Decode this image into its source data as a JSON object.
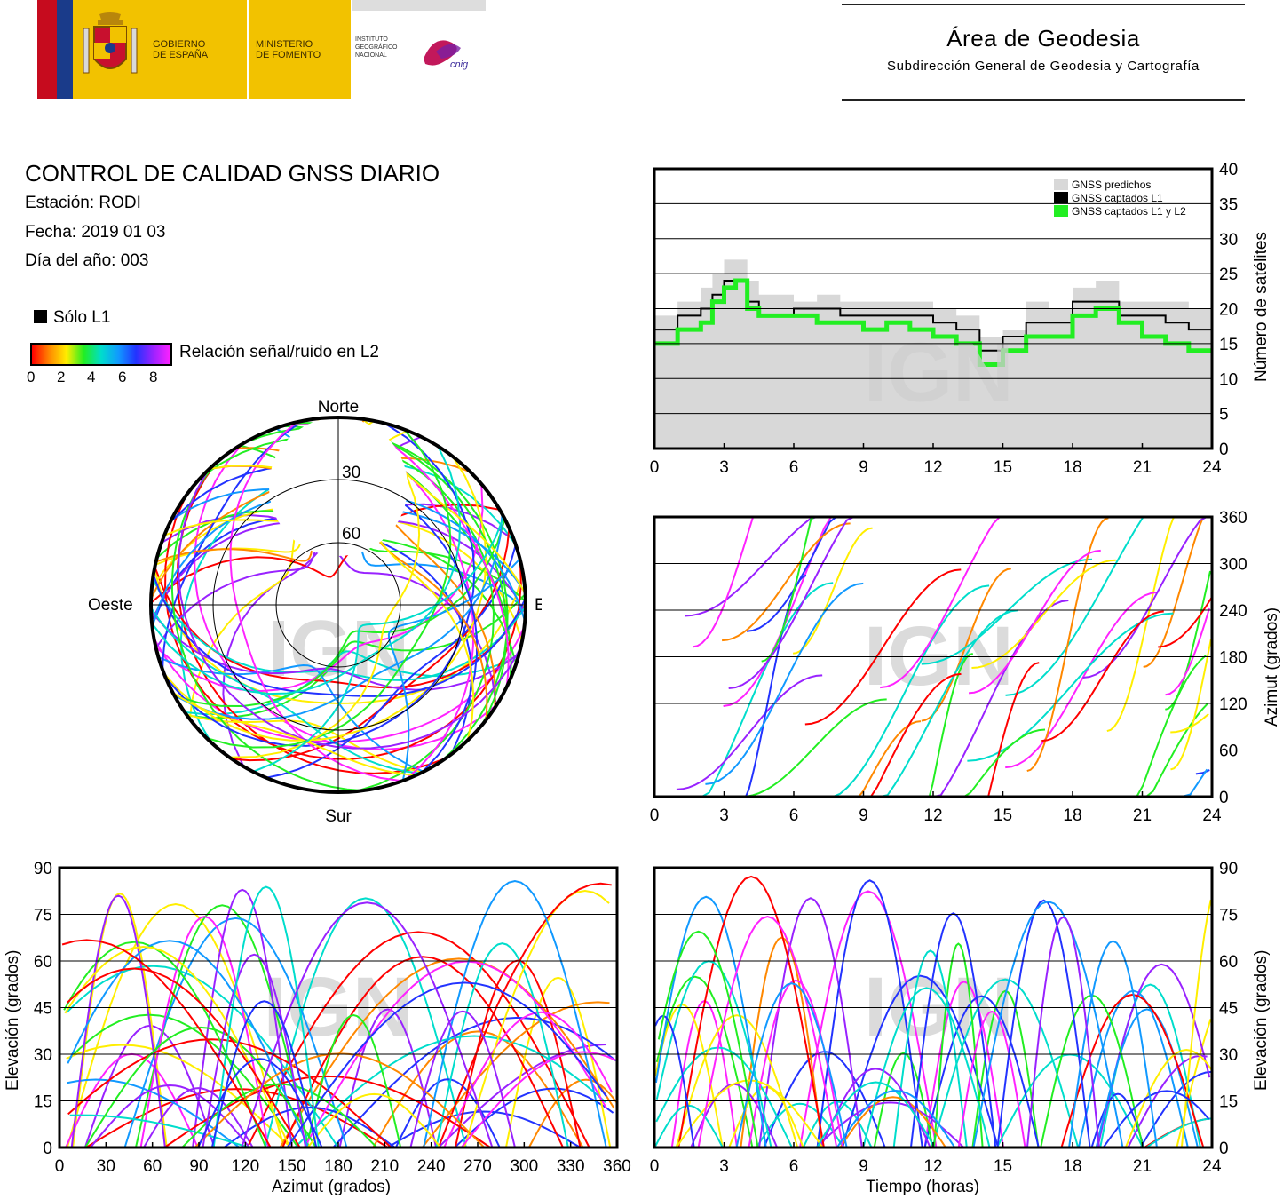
{
  "header": {
    "gobierno_l1": "GOBIERNO",
    "gobierno_l2": "DE ESPAÑA",
    "ministerio_l1": "MINISTERIO",
    "ministerio_l2": "DE FOMENTO",
    "instituto_l1": "INSTITUTO",
    "instituto_l2": "GEOGRÁFICO",
    "instituto_l3": "NACIONAL",
    "cnig": "cnig",
    "area_title": "Área de Geodesia",
    "area_subtitle": "Subdirección General de Geodesia y Cartografía"
  },
  "report": {
    "title": "CONTROL DE CALIDAD GNSS DIARIO",
    "station": "Estación: RODI",
    "date": "Fecha: 2019 01 03",
    "doy": "Día del año: 003"
  },
  "legend": {
    "solo_l1": "Sólo L1",
    "snr_label": "Relación señal/ruido en L2",
    "snr_ticks": [
      "0",
      "2",
      "4",
      "6",
      "8"
    ]
  },
  "colors": {
    "ramp": [
      "#ff0000",
      "#ff8800",
      "#ffee00",
      "#22ee22",
      "#00ddcc",
      "#1199ff",
      "#2233ff",
      "#9922ff",
      "#ff22ff"
    ],
    "predicted": "#d8d8d8",
    "l1": "#000000",
    "l1l2": "#22ee22",
    "grid": "#000000"
  },
  "watermark": "IGN",
  "chart_data": [
    {
      "id": "sat-count",
      "type": "area",
      "xlabel": "",
      "ylabel": "Número de satélites",
      "xlim": [
        0,
        24
      ],
      "ylim": [
        0,
        40
      ],
      "xticks": [
        "0",
        "3",
        "6",
        "9",
        "12",
        "15",
        "18",
        "21",
        "24"
      ],
      "yticks": [
        "0",
        "5",
        "10",
        "15",
        "20",
        "25",
        "30",
        "35",
        "40"
      ],
      "legend": [
        "GNSS predichos",
        "GNSS captados L1",
        "GNSS captados L1 y L2"
      ],
      "legend_position": "top-right",
      "grid": true,
      "series": [
        {
          "name": "GNSS predichos",
          "x": [
            0,
            1,
            2,
            2.5,
            3,
            3.5,
            4,
            4.5,
            5,
            6,
            7,
            8,
            9,
            10,
            11,
            12,
            13,
            14,
            15,
            16,
            17,
            18,
            19,
            20,
            21,
            22,
            23,
            24
          ],
          "values": [
            19,
            21,
            23,
            25,
            27,
            27,
            24,
            22,
            22,
            21,
            22,
            21,
            21,
            21,
            21,
            20,
            19,
            16,
            17,
            21,
            20,
            23,
            24,
            21,
            21,
            21,
            20,
            20
          ]
        },
        {
          "name": "GNSS captados L1",
          "x": [
            0,
            1,
            2,
            2.5,
            3,
            3.5,
            4,
            4.5,
            5,
            6,
            7,
            8,
            9,
            10,
            11,
            12,
            13,
            14,
            15,
            16,
            17,
            18,
            19,
            20,
            21,
            22,
            23,
            24
          ],
          "values": [
            17,
            19,
            20,
            22,
            24,
            24,
            21,
            19,
            19,
            20,
            20,
            19,
            19,
            19,
            19,
            18,
            17,
            14,
            16,
            18,
            18,
            21,
            21,
            19,
            19,
            18,
            17,
            17
          ]
        },
        {
          "name": "GNSS captados L1 y L2",
          "x": [
            0,
            1,
            2,
            2.5,
            3,
            3.5,
            4,
            4.5,
            5,
            6,
            7,
            8,
            9,
            10,
            11,
            12,
            13,
            14,
            15,
            16,
            17,
            18,
            19,
            20,
            21,
            22,
            23,
            24
          ],
          "values": [
            15,
            17,
            18,
            21,
            23,
            24,
            20,
            19,
            19,
            19,
            18,
            18,
            17,
            18,
            17,
            16,
            15,
            12,
            14,
            16,
            16,
            19,
            20,
            18,
            16,
            15,
            14,
            14
          ]
        }
      ]
    },
    {
      "id": "skyplot",
      "type": "scatter",
      "xlabel": "",
      "ylabel": "",
      "directions": [
        "Norte",
        "Sur",
        "Este",
        "Oeste"
      ],
      "rings": [
        "30",
        "60"
      ]
    },
    {
      "id": "azimuth-time",
      "type": "line",
      "xlabel": "",
      "ylabel": "Azimut (grados)",
      "xlim": [
        0,
        24
      ],
      "ylim": [
        0,
        360
      ],
      "xticks": [
        "0",
        "3",
        "6",
        "9",
        "12",
        "15",
        "18",
        "21",
        "24"
      ],
      "yticks": [
        "0",
        "60",
        "120",
        "180",
        "240",
        "300",
        "360"
      ],
      "grid": true
    },
    {
      "id": "elev-azimuth",
      "type": "line",
      "xlabel": "Azimut (grados)",
      "ylabel": "Elevación (grados)",
      "xlim": [
        0,
        360
      ],
      "ylim": [
        0,
        90
      ],
      "xticks": [
        "0",
        "30",
        "60",
        "90",
        "120",
        "150",
        "180",
        "210",
        "240",
        "270",
        "300",
        "330",
        "360"
      ],
      "yticks": [
        "0",
        "15",
        "30",
        "45",
        "60",
        "75",
        "90"
      ],
      "grid": true
    },
    {
      "id": "elev-time",
      "type": "line",
      "xlabel": "Tiempo (horas)",
      "ylabel": "Elevación (grados)",
      "xlim": [
        0,
        24
      ],
      "ylim": [
        0,
        90
      ],
      "xticks": [
        "0",
        "3",
        "6",
        "9",
        "12",
        "15",
        "18",
        "21",
        "24"
      ],
      "yticks": [
        "0",
        "15",
        "30",
        "45",
        "60",
        "75",
        "90"
      ],
      "grid": true
    }
  ]
}
